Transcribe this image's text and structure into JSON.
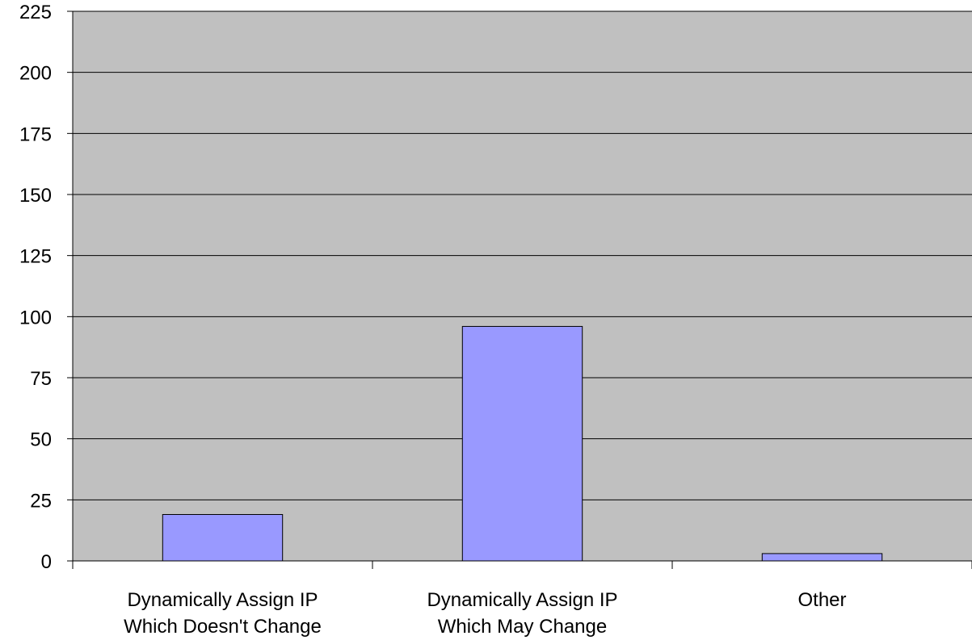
{
  "chart_data": {
    "type": "bar",
    "categories": [
      [
        "Dynamically Assign IP",
        "Which Doesn't Change"
      ],
      [
        "Dynamically Assign IP",
        "Which May Change"
      ],
      [
        "Other"
      ]
    ],
    "values": [
      19,
      96,
      3
    ],
    "title": "",
    "xlabel": "",
    "ylabel": "",
    "ylim": [
      0,
      225
    ],
    "yticks": [
      0,
      25,
      50,
      75,
      100,
      125,
      150,
      175,
      200,
      225
    ],
    "grid": true,
    "legend": "none",
    "colors": {
      "plot_background": "#c0c0c0",
      "bar_fill": "#9999ff",
      "bar_stroke": "#000000",
      "gridline": "#000000"
    }
  }
}
